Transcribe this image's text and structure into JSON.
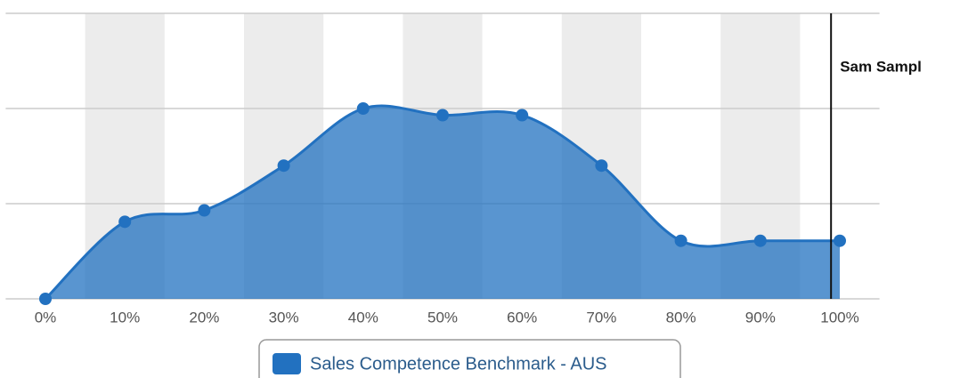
{
  "chart_data": {
    "type": "area",
    "categories": [
      "0%",
      "10%",
      "20%",
      "30%",
      "40%",
      "50%",
      "60%",
      "70%",
      "80%",
      "90%",
      "100%"
    ],
    "series": [
      {
        "name": "Sales Competence Benchmark - AUS",
        "color": "#2271c0",
        "values": [
          0,
          0.81,
          0.93,
          1.4,
          2.0,
          1.93,
          1.93,
          1.4,
          0.61,
          0.61,
          0.61
        ]
      }
    ],
    "ylim": [
      0,
      3
    ],
    "yticks": [
      0,
      1,
      2,
      3
    ],
    "grid": true,
    "annotations": [
      {
        "label": "Sam Sampl",
        "x": 9.89
      }
    ]
  }
}
